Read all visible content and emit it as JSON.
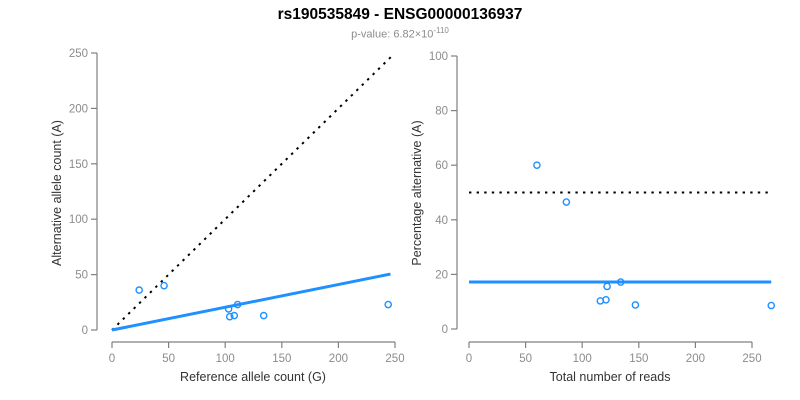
{
  "figure": {
    "title": "rs190535849 - ENSG00000136937",
    "subtitle_prefix": "p-value: 6.82×10",
    "subtitle_exponent": "-110"
  },
  "colors": {
    "accent_blue": "#1E90FF",
    "identity_black": "#000000",
    "axis_line": "#808080",
    "tick_label": "#8c8c8c",
    "axis_title": "#333333",
    "title_text": "#000000",
    "subtitle_text": "#8c8c8c",
    "background": "#ffffff"
  },
  "chart_data": [
    {
      "type": "scatter",
      "name": "allele-counts-scatter",
      "xlabel": "Reference allele count (G)",
      "ylabel": "Alternative allele count (A)",
      "xlim": [
        0,
        250
      ],
      "ylim": [
        0,
        250
      ],
      "xticks": [
        0,
        50,
        100,
        150,
        200,
        250
      ],
      "yticks": [
        0,
        50,
        100,
        150,
        200,
        250
      ],
      "grid": false,
      "legend": false,
      "marker": {
        "shape": "open-circle",
        "color": "#1E90FF"
      },
      "points": [
        [
          24,
          36
        ],
        [
          46,
          40
        ],
        [
          103,
          19
        ],
        [
          111,
          23
        ],
        [
          104,
          12
        ],
        [
          108,
          13
        ],
        [
          134,
          13
        ],
        [
          244,
          23
        ]
      ],
      "lines": [
        {
          "name": "identity-line",
          "style": "dotted",
          "color": "#000000",
          "width": 2,
          "from": [
            0,
            0
          ],
          "to": [
            247,
            247
          ]
        },
        {
          "name": "fit-line",
          "style": "solid",
          "color": "#1E90FF",
          "width": 3,
          "from": [
            0,
            0
          ],
          "to": [
            246,
            50.5
          ]
        }
      ]
    },
    {
      "type": "scatter",
      "name": "percentage-alternative-scatter",
      "xlabel": "Total number of reads",
      "ylabel": "Percentage alternative (A)",
      "xlim": [
        0,
        250
      ],
      "ylim": [
        0,
        100
      ],
      "xticks": [
        0,
        50,
        100,
        150,
        200,
        250
      ],
      "yticks": [
        0,
        20,
        40,
        60,
        80,
        100
      ],
      "grid": false,
      "legend": false,
      "marker": {
        "shape": "open-circle",
        "color": "#1E90FF"
      },
      "points": [
        [
          60,
          60
        ],
        [
          86,
          46.5
        ],
        [
          122,
          15.6
        ],
        [
          134,
          17.2
        ],
        [
          116,
          10.3
        ],
        [
          121,
          10.7
        ],
        [
          147,
          8.8
        ],
        [
          267,
          8.6
        ]
      ],
      "lines": [
        {
          "name": "fifty-percent-line",
          "style": "dotted",
          "color": "#000000",
          "width": 2,
          "from": [
            0,
            50
          ],
          "to": [
            267,
            50
          ]
        },
        {
          "name": "fit-line",
          "style": "solid",
          "color": "#1E90FF",
          "width": 3,
          "from": [
            0,
            17.2
          ],
          "to": [
            267,
            17.2
          ]
        }
      ]
    }
  ]
}
